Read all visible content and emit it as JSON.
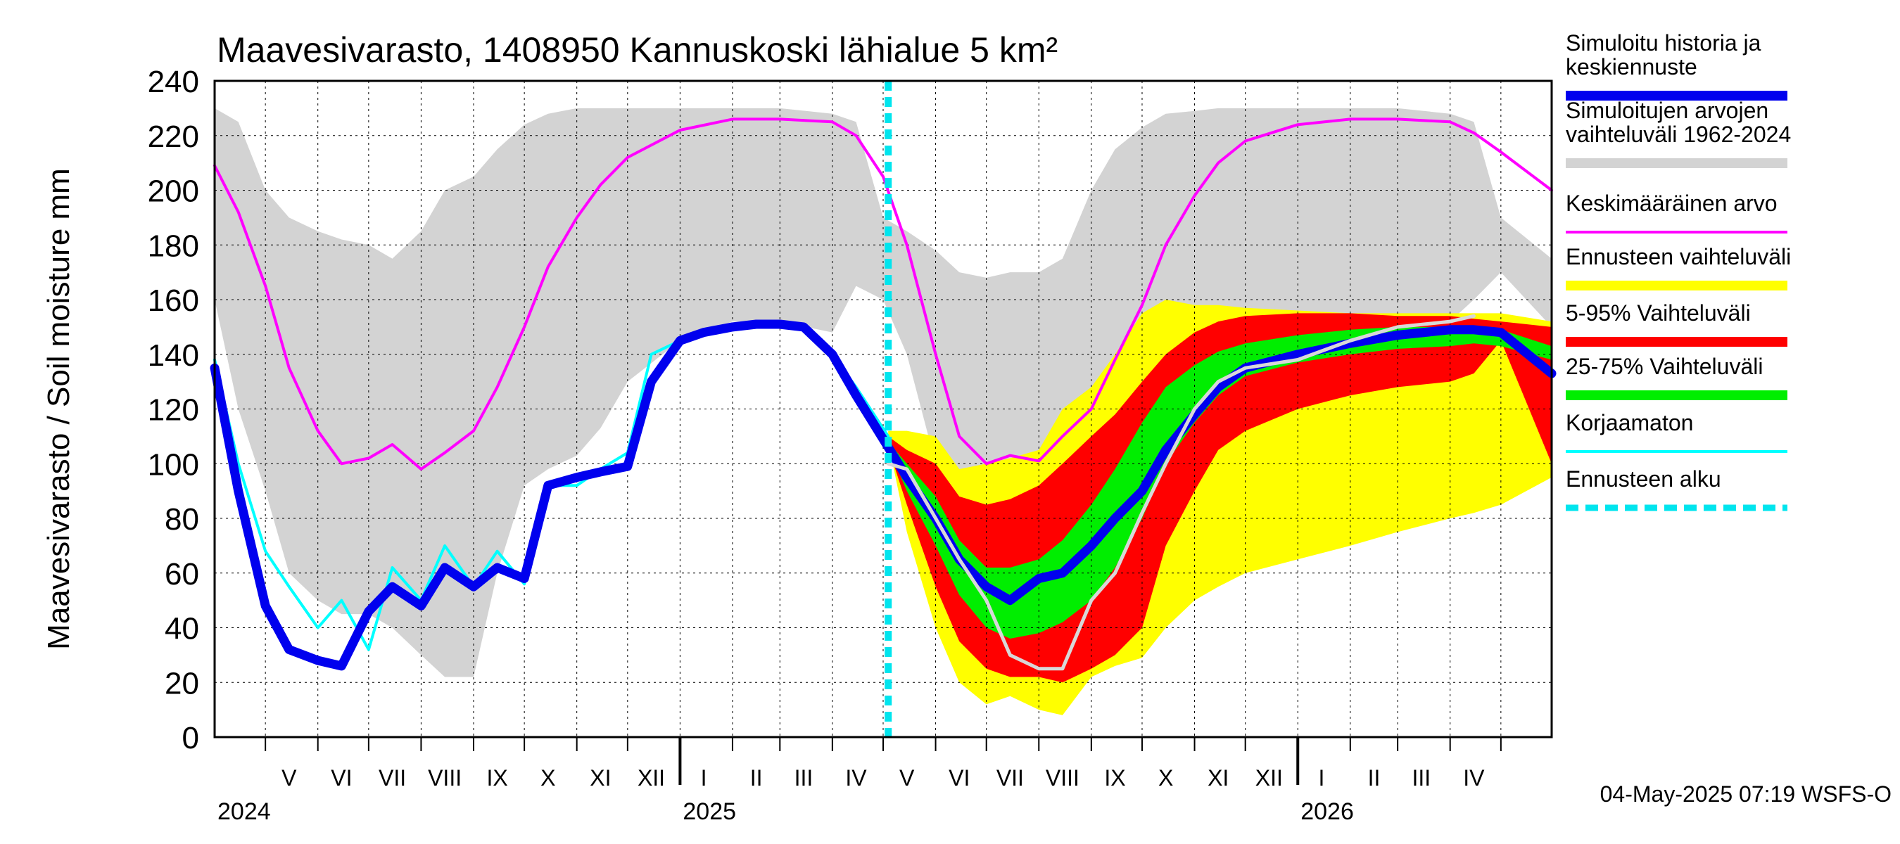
{
  "chart_data": {
    "type": "area",
    "title": "Maavesivarasto, 1408950 Kannuskoski lähialue 5 km²",
    "ylabel": "Maavesivarasto / Soil moisture   mm",
    "ylim": [
      0,
      240
    ],
    "yticks": [
      "0",
      "20",
      "40",
      "60",
      "80",
      "100",
      "120",
      "140",
      "160",
      "180",
      "200",
      "220",
      "240"
    ],
    "x_range": [
      "2024-04-01",
      "2026-05-31"
    ],
    "forecast_start": "2025-05-04",
    "grid": true,
    "legend_position": "right",
    "months": [
      {
        "label": "V",
        "date": "2024-05-15"
      },
      {
        "label": "VI",
        "date": "2024-06-15"
      },
      {
        "label": "VII",
        "date": "2024-07-15"
      },
      {
        "label": "VIII",
        "date": "2024-08-15"
      },
      {
        "label": "IX",
        "date": "2024-09-15"
      },
      {
        "label": "X",
        "date": "2024-10-15"
      },
      {
        "label": "XI",
        "date": "2024-11-15"
      },
      {
        "label": "XII",
        "date": "2024-12-15"
      },
      {
        "label": "I",
        "date": "2025-01-15"
      },
      {
        "label": "II",
        "date": "2025-02-15"
      },
      {
        "label": "III",
        "date": "2025-03-15"
      },
      {
        "label": "IV",
        "date": "2025-04-15"
      },
      {
        "label": "V",
        "date": "2025-05-15"
      },
      {
        "label": "VI",
        "date": "2025-06-15"
      },
      {
        "label": "VII",
        "date": "2025-07-15"
      },
      {
        "label": "VIII",
        "date": "2025-08-15"
      },
      {
        "label": "IX",
        "date": "2025-09-15"
      },
      {
        "label": "X",
        "date": "2025-10-15"
      },
      {
        "label": "XI",
        "date": "2025-11-15"
      },
      {
        "label": "XII",
        "date": "2025-12-15"
      },
      {
        "label": "I",
        "date": "2026-01-15"
      },
      {
        "label": "II",
        "date": "2026-02-15"
      },
      {
        "label": "III",
        "date": "2026-03-15"
      },
      {
        "label": "IV",
        "date": "2026-04-15"
      }
    ],
    "years": [
      {
        "label": "2024",
        "date": "2024-04-01"
      },
      {
        "label": "2025",
        "date": "2025-01-01"
      },
      {
        "label": "2026",
        "date": "2026-01-01"
      }
    ],
    "series": [
      {
        "name": "Simuloitujen arvojen vaihteluväli 1962-2024",
        "kind": "band",
        "color": "#d3d3d3",
        "x": [
          "2024-04-01",
          "2024-04-15",
          "2024-05-01",
          "2024-05-15",
          "2024-06-01",
          "2024-06-15",
          "2024-07-01",
          "2024-07-15",
          "2024-08-01",
          "2024-08-15",
          "2024-09-01",
          "2024-09-15",
          "2024-10-01",
          "2024-10-15",
          "2024-11-01",
          "2024-11-15",
          "2024-12-01",
          "2025-01-01",
          "2025-02-01",
          "2025-03-01",
          "2025-04-01",
          "2025-04-15",
          "2025-05-01",
          "2025-05-15",
          "2025-06-01",
          "2025-06-15",
          "2025-07-01",
          "2025-07-15",
          "2025-08-01",
          "2025-08-15",
          "2025-09-01",
          "2025-09-15",
          "2025-10-01",
          "2025-10-15",
          "2025-11-01",
          "2025-11-15",
          "2025-12-01",
          "2026-01-01",
          "2026-02-01",
          "2026-03-01",
          "2026-04-01",
          "2026-04-15",
          "2026-05-01",
          "2026-05-31"
        ],
        "low": [
          160,
          120,
          90,
          60,
          50,
          45,
          45,
          40,
          30,
          22,
          22,
          60,
          92,
          98,
          103,
          113,
          130,
          145,
          152,
          152,
          148,
          165,
          160,
          140,
          100,
          70,
          60,
          65,
          50,
          40,
          35,
          40,
          50,
          65,
          85,
          100,
          112,
          128,
          140,
          150,
          152,
          160,
          170,
          150
        ],
        "high": [
          230,
          225,
          200,
          190,
          185,
          182,
          180,
          175,
          185,
          200,
          205,
          215,
          224,
          228,
          230,
          230,
          230,
          230,
          230,
          230,
          228,
          225,
          190,
          185,
          178,
          170,
          168,
          170,
          170,
          175,
          200,
          215,
          223,
          228,
          229,
          230,
          230,
          230,
          230,
          230,
          228,
          225,
          190,
          175
        ]
      },
      {
        "name": "Keskimääräinen arvo",
        "kind": "line",
        "color": "#ff00ff",
        "x": [
          "2024-04-01",
          "2024-04-15",
          "2024-05-01",
          "2024-05-15",
          "2024-06-01",
          "2024-06-15",
          "2024-07-01",
          "2024-07-15",
          "2024-08-01",
          "2024-08-15",
          "2024-09-01",
          "2024-09-15",
          "2024-10-01",
          "2024-10-15",
          "2024-11-01",
          "2024-11-15",
          "2024-12-01",
          "2025-01-01",
          "2025-02-01",
          "2025-03-01",
          "2025-04-01",
          "2025-04-15",
          "2025-05-01",
          "2025-05-15",
          "2025-06-01",
          "2025-06-15",
          "2025-07-01",
          "2025-07-15",
          "2025-08-01",
          "2025-08-15",
          "2025-09-01",
          "2025-09-15",
          "2025-10-01",
          "2025-10-15",
          "2025-11-01",
          "2025-11-15",
          "2025-12-01",
          "2026-01-01",
          "2026-02-01",
          "2026-03-01",
          "2026-04-01",
          "2026-04-15",
          "2026-05-01",
          "2026-05-31"
        ],
        "values": [
          209,
          192,
          165,
          135,
          112,
          100,
          102,
          107,
          98,
          104,
          112,
          128,
          150,
          172,
          190,
          202,
          212,
          222,
          226,
          226,
          225,
          220,
          205,
          180,
          140,
          110,
          100,
          103,
          101,
          110,
          120,
          138,
          158,
          180,
          198,
          210,
          218,
          224,
          226,
          226,
          225,
          221,
          214,
          200
        ]
      },
      {
        "name": "Ennusteen vaihteluväli",
        "kind": "band",
        "color": "#ffff00",
        "x": [
          "2025-05-04",
          "2025-05-15",
          "2025-06-01",
          "2025-06-15",
          "2025-07-01",
          "2025-07-15",
          "2025-08-01",
          "2025-08-15",
          "2025-09-01",
          "2025-09-15",
          "2025-10-01",
          "2025-10-15",
          "2025-11-01",
          "2025-11-15",
          "2025-12-01",
          "2026-01-01",
          "2026-02-01",
          "2026-03-01",
          "2026-04-01",
          "2026-04-15",
          "2026-05-01",
          "2026-05-31"
        ],
        "low": [
          108,
          75,
          40,
          20,
          12,
          15,
          10,
          8,
          22,
          26,
          29,
          40,
          50,
          55,
          60,
          65,
          70,
          75,
          80,
          82,
          85,
          95
        ],
        "high": [
          112,
          112,
          110,
          98,
          100,
          102,
          105,
          120,
          128,
          140,
          155,
          160,
          158,
          158,
          157,
          156,
          155,
          155,
          155,
          155,
          155,
          152
        ]
      },
      {
        "name": "5-95% Vaihteluväli",
        "kind": "band",
        "color": "#ff0000",
        "x": [
          "2025-05-04",
          "2025-05-15",
          "2025-06-01",
          "2025-06-15",
          "2025-07-01",
          "2025-07-15",
          "2025-08-01",
          "2025-08-15",
          "2025-09-01",
          "2025-09-15",
          "2025-10-01",
          "2025-10-15",
          "2025-11-01",
          "2025-11-15",
          "2025-12-01",
          "2026-01-01",
          "2026-02-01",
          "2026-03-01",
          "2026-04-01",
          "2026-04-15",
          "2026-05-01",
          "2026-05-31"
        ],
        "low": [
          106,
          85,
          55,
          35,
          25,
          22,
          22,
          20,
          25,
          30,
          40,
          70,
          90,
          105,
          112,
          120,
          125,
          128,
          130,
          133,
          145,
          100
        ],
        "high": [
          110,
          105,
          100,
          88,
          85,
          87,
          92,
          100,
          110,
          118,
          130,
          140,
          148,
          152,
          154,
          155,
          155,
          154,
          154,
          153,
          152,
          150
        ]
      },
      {
        "name": "25-75% Vaihteluväli",
        "kind": "band",
        "color": "#00ee00",
        "x": [
          "2025-05-04",
          "2025-05-15",
          "2025-06-01",
          "2025-06-15",
          "2025-07-01",
          "2025-07-15",
          "2025-08-01",
          "2025-08-15",
          "2025-09-01",
          "2025-09-15",
          "2025-10-01",
          "2025-10-15",
          "2025-11-01",
          "2025-11-15",
          "2025-12-01",
          "2026-01-01",
          "2026-02-01",
          "2026-03-01",
          "2026-04-01",
          "2026-04-15",
          "2026-05-01",
          "2026-05-31"
        ],
        "low": [
          106,
          90,
          70,
          52,
          40,
          36,
          38,
          42,
          50,
          62,
          80,
          100,
          115,
          125,
          132,
          137,
          140,
          142,
          143,
          144,
          143,
          138
        ],
        "high": [
          108,
          100,
          88,
          72,
          62,
          62,
          65,
          72,
          85,
          98,
          115,
          128,
          136,
          141,
          144,
          147,
          149,
          150,
          150,
          150,
          149,
          143
        ]
      },
      {
        "name": "Korjaamaton",
        "kind": "line",
        "color": "#00ffff",
        "x": [
          "2024-04-01",
          "2024-04-15",
          "2024-05-01",
          "2024-05-15",
          "2024-06-01",
          "2024-06-15",
          "2024-07-01",
          "2024-07-15",
          "2024-08-01",
          "2024-08-15",
          "2024-09-01",
          "2024-09-15",
          "2024-10-01",
          "2024-10-15",
          "2024-11-01",
          "2024-11-15",
          "2024-12-01",
          "2024-12-15",
          "2025-01-01",
          "2025-01-15",
          "2025-02-01",
          "2025-02-15",
          "2025-03-01",
          "2025-03-15",
          "2025-04-01",
          "2025-04-15",
          "2025-05-04"
        ],
        "values": [
          138,
          100,
          68,
          55,
          40,
          50,
          32,
          62,
          50,
          70,
          55,
          68,
          56,
          92,
          92,
          98,
          104,
          140,
          145,
          148,
          150,
          151,
          151,
          150,
          140,
          128,
          110
        ]
      },
      {
        "name": "Simuloitu historia ja keskiennuste",
        "kind": "line",
        "color": "#0000ee",
        "x": [
          "2024-04-01",
          "2024-04-15",
          "2024-05-01",
          "2024-05-15",
          "2024-06-01",
          "2024-06-15",
          "2024-07-01",
          "2024-07-15",
          "2024-08-01",
          "2024-08-15",
          "2024-09-01",
          "2024-09-15",
          "2024-10-01",
          "2024-10-15",
          "2024-11-01",
          "2024-11-15",
          "2024-12-01",
          "2024-12-15",
          "2025-01-01",
          "2025-01-15",
          "2025-02-01",
          "2025-02-15",
          "2025-03-01",
          "2025-03-15",
          "2025-04-01",
          "2025-04-15",
          "2025-05-04",
          "2025-05-15",
          "2025-06-01",
          "2025-06-15",
          "2025-07-01",
          "2025-07-15",
          "2025-08-01",
          "2025-08-15",
          "2025-09-01",
          "2025-09-15",
          "2025-10-01",
          "2025-10-15",
          "2025-11-01",
          "2025-11-15",
          "2025-12-01",
          "2026-01-01",
          "2026-02-01",
          "2026-03-01",
          "2026-04-01",
          "2026-04-15",
          "2026-05-01",
          "2026-05-31"
        ],
        "values": [
          135,
          90,
          48,
          32,
          28,
          26,
          46,
          55,
          48,
          62,
          55,
          62,
          58,
          92,
          95,
          97,
          99,
          130,
          145,
          148,
          150,
          151,
          151,
          150,
          140,
          125,
          106,
          95,
          80,
          65,
          55,
          50,
          58,
          60,
          70,
          80,
          90,
          105,
          118,
          128,
          135,
          140,
          144,
          147,
          149,
          149,
          148,
          133
        ]
      },
      {
        "name": "",
        "kind": "line",
        "color": "#d8d8d8",
        "x": [
          "2025-05-04",
          "2025-05-15",
          "2025-06-01",
          "2025-06-15",
          "2025-07-01",
          "2025-07-15",
          "2025-08-01",
          "2025-08-15",
          "2025-09-01",
          "2025-09-15",
          "2025-10-01",
          "2025-10-15",
          "2025-11-01",
          "2025-11-15",
          "2025-12-01",
          "2026-01-01",
          "2026-02-01",
          "2026-03-01",
          "2026-04-01",
          "2026-04-15"
        ],
        "values": [
          100,
          98,
          80,
          65,
          50,
          30,
          25,
          25,
          50,
          60,
          82,
          100,
          120,
          130,
          135,
          138,
          145,
          150,
          152,
          154
        ]
      },
      {
        "name": "Ennusteen alku",
        "kind": "vline",
        "color": "#00e5ee",
        "x": "2025-05-04"
      }
    ],
    "legend": [
      {
        "label": "Simuloitu historia ja keskiennuste",
        "color": "#0000ee",
        "style": "thick"
      },
      {
        "label": "Simuloitujen arvojen vaihteluväli 1962-2024",
        "color": "#d3d3d3",
        "style": "thick"
      },
      {
        "label": "Keskimääräinen arvo",
        "color": "#ff00ff",
        "style": "thin"
      },
      {
        "label": "Ennusteen vaihteluväli",
        "color": "#ffff00",
        "style": "thick"
      },
      {
        "label": "5-95% Vaihteluväli",
        "color": "#ff0000",
        "style": "thick"
      },
      {
        "label": "25-75% Vaihteluväli",
        "color": "#00ee00",
        "style": "thick"
      },
      {
        "label": "Korjaamaton",
        "color": "#00ffff",
        "style": "thin"
      },
      {
        "label": "Ennusteen alku",
        "color": "#00e5ee",
        "style": "dashed"
      }
    ],
    "footer": "04-May-2025 07:19 WSFS-O"
  }
}
